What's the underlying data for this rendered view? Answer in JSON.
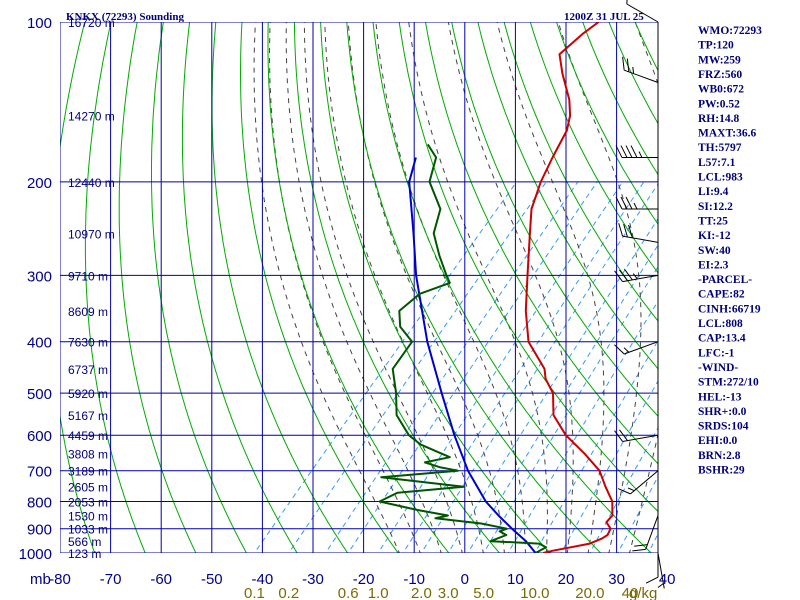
{
  "header": {
    "station": "KNKX (72293) Sounding",
    "time": "1200Z 31 JUL 25"
  },
  "axis": {
    "p_unit_label": "mb",
    "mixing_unit_label": "g/kg"
  },
  "colors": {
    "grid": "#0000aa",
    "dry_adiabat": "#00aa00",
    "moist_adiabat": "#444444",
    "mixing_ratio": "#3399ff",
    "temperature": "#cc0000",
    "dewpoint": "#005500",
    "parcel": "#0000cc",
    "wind_barb": "#000000"
  },
  "chart_data": {
    "type": "line",
    "diagram": "skew-t log-p",
    "y_axis": {
      "quantity": "pressure",
      "scale": "log",
      "range": [
        1000,
        100
      ],
      "ticks": [
        100,
        200,
        300,
        400,
        500,
        600,
        700,
        800,
        900,
        1000
      ],
      "tick_labels": [
        "100",
        "200",
        "300",
        "400",
        "500",
        "600",
        "700",
        "800",
        "900",
        "1000"
      ]
    },
    "x_axis": {
      "quantity": "temperature",
      "range": [
        -80,
        40
      ],
      "ticks": [
        -80,
        -70,
        -60,
        -50,
        -40,
        -30,
        -20,
        -10,
        0,
        10,
        20,
        30,
        40
      ],
      "tick_labels": [
        "-80",
        "-70",
        "-60",
        "-50",
        "-40",
        "-30",
        "-20",
        "-10",
        "0",
        "10",
        "20",
        "30",
        "40"
      ]
    },
    "height_labels": [
      {
        "p": 100,
        "label": "16720 m"
      },
      {
        "p": 150,
        "label": "14270 m"
      },
      {
        "p": 200,
        "label": "12440 m"
      },
      {
        "p": 250,
        "label": "10970 m"
      },
      {
        "p": 300,
        "label": "9710 m"
      },
      {
        "p": 350,
        "label": "8609 m"
      },
      {
        "p": 400,
        "label": "7630 m"
      },
      {
        "p": 450,
        "label": "6737 m"
      },
      {
        "p": 500,
        "label": "5920 m"
      },
      {
        "p": 550,
        "label": "5167 m"
      },
      {
        "p": 600,
        "label": "4459 m"
      },
      {
        "p": 650,
        "label": "3808 m"
      },
      {
        "p": 700,
        "label": "3189 m"
      },
      {
        "p": 750,
        "label": "2605 m"
      },
      {
        "p": 800,
        "label": "2053 m"
      },
      {
        "p": 850,
        "label": "1530 m"
      },
      {
        "p": 900,
        "label": "1033 m"
      },
      {
        "p": 950,
        "label": "566 m"
      },
      {
        "p": 1000,
        "label": "123 m"
      }
    ],
    "mixing_ratio_labels": [
      {
        "w": 0.1,
        "label": "0.1"
      },
      {
        "w": 0.2,
        "label": "0.2"
      },
      {
        "w": 0.6,
        "label": "0.6"
      },
      {
        "w": 1.0,
        "label": "1.0"
      },
      {
        "w": 2.0,
        "label": "2.0"
      },
      {
        "w": 3.0,
        "label": "3.0"
      },
      {
        "w": 5.0,
        "label": "5.0"
      },
      {
        "w": 10.0,
        "label": "10.0"
      },
      {
        "w": 20.0,
        "label": "20.0"
      },
      {
        "w": 40.0,
        "label": "40"
      }
    ],
    "series": [
      {
        "points": [
          {
            "p": 1000,
            "t": 15.5
          },
          {
            "p": 990,
            "t": 17
          },
          {
            "p": 975,
            "t": 20
          },
          {
            "p": 960,
            "t": 23
          },
          {
            "p": 940,
            "t": 24.5
          },
          {
            "p": 925,
            "t": 25
          },
          {
            "p": 900,
            "t": 24.5
          },
          {
            "p": 875,
            "t": 22.5
          },
          {
            "p": 850,
            "t": 22.5
          },
          {
            "p": 800,
            "t": 20
          },
          {
            "p": 750,
            "t": 16
          },
          {
            "p": 700,
            "t": 12
          },
          {
            "p": 650,
            "t": 6
          },
          {
            "p": 600,
            "t": -1
          },
          {
            "p": 550,
            "t": -7
          },
          {
            "p": 500,
            "t": -11
          },
          {
            "p": 470,
            "t": -15
          },
          {
            "p": 450,
            "t": -17
          },
          {
            "p": 400,
            "t": -25
          },
          {
            "p": 350,
            "t": -31
          },
          {
            "p": 300,
            "t": -37
          },
          {
            "p": 250,
            "t": -44
          },
          {
            "p": 225,
            "t": -48
          },
          {
            "p": 200,
            "t": -51
          },
          {
            "p": 180,
            "t": -53
          },
          {
            "p": 160,
            "t": -55
          },
          {
            "p": 150,
            "t": -57
          },
          {
            "p": 140,
            "t": -60
          },
          {
            "p": 125,
            "t": -66
          },
          {
            "p": 115,
            "t": -70
          },
          {
            "p": 105,
            "t": -69
          },
          {
            "p": 100,
            "t": -68
          }
        ]
      },
      {
        "points": [
          {
            "p": 1000,
            "t": 14
          },
          {
            "p": 975,
            "t": 15
          },
          {
            "p": 960,
            "t": 13
          },
          {
            "p": 950,
            "t": 3
          },
          {
            "p": 925,
            "t": 5
          },
          {
            "p": 910,
            "t": 3
          },
          {
            "p": 900,
            "t": 4
          },
          {
            "p": 880,
            "t": -2
          },
          {
            "p": 860,
            "t": -12
          },
          {
            "p": 850,
            "t": -10
          },
          {
            "p": 830,
            "t": -17
          },
          {
            "p": 800,
            "t": -26
          },
          {
            "p": 770,
            "t": -24
          },
          {
            "p": 750,
            "t": -12
          },
          {
            "p": 720,
            "t": -30
          },
          {
            "p": 700,
            "t": -16
          },
          {
            "p": 690,
            "t": -20
          },
          {
            "p": 675,
            "t": -24
          },
          {
            "p": 660,
            "t": -20
          },
          {
            "p": 625,
            "t": -28
          },
          {
            "p": 600,
            "t": -32
          },
          {
            "p": 550,
            "t": -38
          },
          {
            "p": 500,
            "t": -42
          },
          {
            "p": 450,
            "t": -47
          },
          {
            "p": 400,
            "t": -48
          },
          {
            "p": 375,
            "t": -53
          },
          {
            "p": 350,
            "t": -56
          },
          {
            "p": 325,
            "t": -55
          },
          {
            "p": 310,
            "t": -51
          },
          {
            "p": 300,
            "t": -53
          },
          {
            "p": 275,
            "t": -58
          },
          {
            "p": 250,
            "t": -63
          },
          {
            "p": 225,
            "t": -66
          },
          {
            "p": 200,
            "t": -73
          },
          {
            "p": 180,
            "t": -76
          },
          {
            "p": 170,
            "t": -80
          }
        ]
      },
      {
        "points": [
          {
            "p": 1000,
            "t": 14
          },
          {
            "p": 950,
            "t": 10
          },
          {
            "p": 900,
            "t": 5
          },
          {
            "p": 850,
            "t": 0
          },
          {
            "p": 800,
            "t": -5
          },
          {
            "p": 700,
            "t": -14
          },
          {
            "p": 600,
            "t": -23
          },
          {
            "p": 500,
            "t": -33
          },
          {
            "p": 400,
            "t": -45
          },
          {
            "p": 300,
            "t": -59
          },
          {
            "p": 250,
            "t": -67
          },
          {
            "p": 200,
            "t": -77
          },
          {
            "p": 180,
            "t": -80
          }
        ]
      }
    ],
    "wind_barbs": [
      {
        "p": 100,
        "dir": 300,
        "kt": 10
      },
      {
        "p": 130,
        "dir": 290,
        "kt": 25
      },
      {
        "p": 180,
        "dir": 270,
        "kt": 45
      },
      {
        "p": 225,
        "dir": 270,
        "kt": 35
      },
      {
        "p": 260,
        "dir": 280,
        "kt": 30
      },
      {
        "p": 300,
        "dir": 260,
        "kt": 35
      },
      {
        "p": 400,
        "dir": 250,
        "kt": 15
      },
      {
        "p": 600,
        "dir": 260,
        "kt": 20
      },
      {
        "p": 700,
        "dir": 230,
        "kt": 15
      },
      {
        "p": 850,
        "dir": 200,
        "kt": 20
      },
      {
        "p": 950,
        "dir": 180,
        "kt": 10
      },
      {
        "p": 1000,
        "dir": 170,
        "kt": 5
      }
    ]
  },
  "indices": [
    "WMO:72293",
    "TP:120",
    "MW:259",
    "FRZ:560",
    "WB0:672",
    "PW:0.52",
    "RH:14.8",
    "MAXT:36.6",
    "TH:5797",
    "L57:7.1",
    "LCL:983",
    "LI:9.4",
    "SI:12.2",
    "TT:25",
    "KI:-12",
    "SW:40",
    "EI:2.3",
    "-PARCEL-",
    "CAPE:82",
    "CINH:66719",
    "LCL:808",
    "CAP:13.4",
    "LFC:-1",
    "-WIND-",
    "STM:272/10",
    "HEL:-13",
    "SHR+:0.0",
    "SRDS:104",
    "EHI:0.0",
    "BRN:2.8",
    "BSHR:29"
  ]
}
